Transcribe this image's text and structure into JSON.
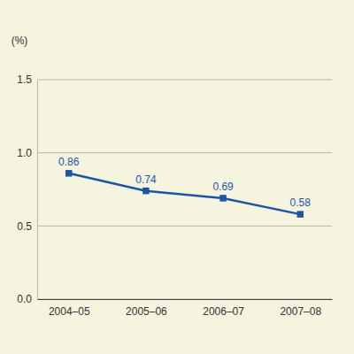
{
  "chart_data": {
    "type": "line",
    "y_label": "(%)",
    "categories": [
      "2004–05",
      "2005–06",
      "2006–07",
      "2007–08"
    ],
    "values": [
      0.86,
      0.74,
      0.69,
      0.58
    ],
    "color": "#1d55a4",
    "marker": "square",
    "line_style": "solid",
    "ylim": [
      0,
      1.5
    ],
    "yticks": [
      {
        "value": 0,
        "label": "0.0"
      },
      {
        "value": 0.5,
        "label": "0.5"
      },
      {
        "value": 1,
        "label": "1.0"
      },
      {
        "value": 1.5,
        "label": "1.5"
      }
    ],
    "grid": true,
    "data_labels": true
  }
}
